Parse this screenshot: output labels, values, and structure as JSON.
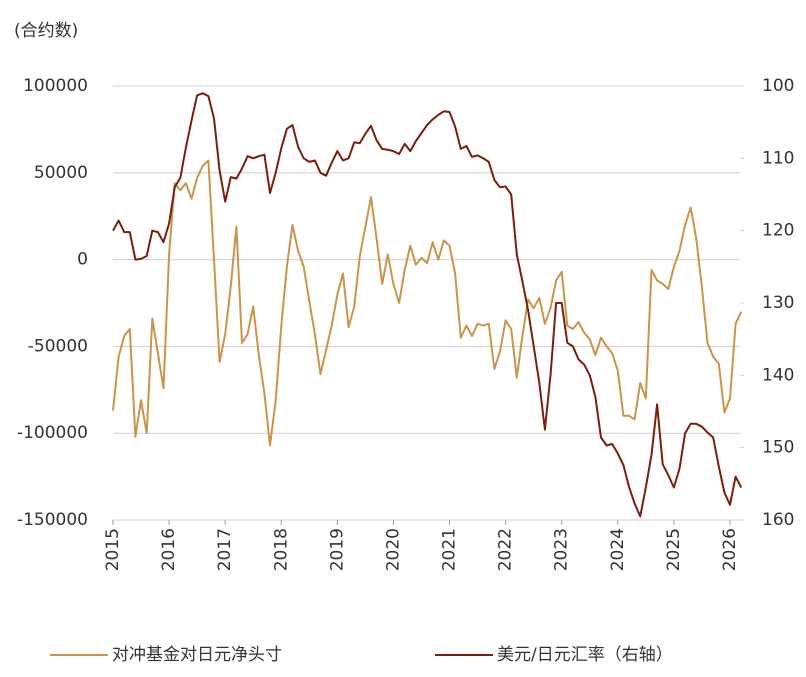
{
  "chart_data": {
    "type": "line",
    "ylabel": "(合约数)",
    "x": [
      2015,
      2015.1,
      2015.2,
      2015.3,
      2015.4,
      2015.5,
      2015.6,
      2015.7,
      2015.8,
      2015.9,
      2016,
      2016.1,
      2016.2,
      2016.3,
      2016.4,
      2016.5,
      2016.6,
      2016.7,
      2016.8,
      2016.9,
      2017,
      2017.1,
      2017.2,
      2017.3,
      2017.4,
      2017.5,
      2017.6,
      2017.7,
      2017.8,
      2017.9,
      2018,
      2018.1,
      2018.2,
      2018.3,
      2018.4,
      2018.5,
      2018.6,
      2018.7,
      2018.8,
      2018.9,
      2019,
      2019.1,
      2019.2,
      2019.3,
      2019.4,
      2019.5,
      2019.6,
      2019.7,
      2019.8,
      2019.9,
      2020,
      2020.1,
      2020.2,
      2020.3,
      2020.4,
      2020.5,
      2020.6,
      2020.7,
      2020.8,
      2020.9,
      2021,
      2021.1,
      2021.2,
      2021.3,
      2021.4,
      2021.5,
      2021.6,
      2021.7,
      2021.8,
      2021.9,
      2022,
      2022.1,
      2022.2,
      2022.3,
      2022.4,
      2022.5,
      2022.6,
      2022.7,
      2022.8,
      2022.9,
      2023,
      2023.1,
      2023.2,
      2023.3,
      2023.4,
      2023.5,
      2023.6,
      2023.7,
      2023.8,
      2023.9,
      2024,
      2024.1,
      2024.2,
      2024.3,
      2024.4,
      2024.5,
      2024.6,
      2024.7,
      2024.8,
      2024.9,
      2025,
      2025.1,
      2025.2,
      2025.3,
      2025.4,
      2025.5,
      2025.6,
      2025.7,
      2025.8,
      2025.9,
      2026,
      2026.1,
      2026.2
    ],
    "series": [
      {
        "name": "对冲基金对日元净头寸",
        "color": "#c9954c",
        "axis": "y",
        "values": [
          -87000,
          -56000,
          -44000,
          -40000,
          -102000,
          -81000,
          -100000,
          -34000,
          -54000,
          -74000,
          3000,
          44000,
          40000,
          44000,
          35000,
          47000,
          54000,
          57000,
          0,
          -59000,
          -43000,
          -15000,
          19000,
          -48000,
          -43000,
          -27000,
          -55000,
          -77000,
          -107000,
          -81000,
          -38000,
          -4000,
          20000,
          5000,
          -4000,
          -24000,
          -43000,
          -66000,
          -52000,
          -38000,
          -20000,
          -8000,
          -39000,
          -27000,
          2000,
          19000,
          36000,
          12000,
          -14000,
          3000,
          -14000,
          -25000,
          -6000,
          8000,
          -3000,
          1000,
          -2000,
          10000,
          0,
          11000,
          8000,
          -8000,
          -45000,
          -38000,
          -44000,
          -37000,
          -38000,
          -37000,
          -63000,
          -53000,
          -35000,
          -40000,
          -68000,
          -44000,
          -23000,
          -28000,
          -22000,
          -37000,
          -28000,
          -12000,
          -7000,
          -38000,
          -40000,
          -36000,
          -42000,
          -46000,
          -55000,
          -45000,
          -50000,
          -54000,
          -64000,
          -90000,
          -90000,
          -92000,
          -71000,
          -80000,
          -6000,
          -12000,
          -14000,
          -17000,
          -4000,
          5000,
          20000,
          30000,
          12000,
          -16000,
          -48000,
          -56000,
          -60000,
          -88000,
          -80000,
          -37000,
          -30000
        ]
      },
      {
        "name": "美元/日元汇率（右轴）",
        "color": "#7b1e0c",
        "axis": "y2",
        "values": [
          120,
          118.6,
          120.2,
          120.2,
          124,
          123.9,
          123.5,
          120,
          120.2,
          121.6,
          119,
          114,
          112.7,
          108.5,
          104.8,
          101.3,
          101,
          101.4,
          104.5,
          111.7,
          116,
          112.6,
          112.8,
          111.4,
          109.7,
          110,
          109.7,
          109.5,
          114.8,
          112,
          108.6,
          105.9,
          105.4,
          108.4,
          110,
          110.5,
          110.3,
          112,
          112.4,
          110.6,
          109,
          110.3,
          110,
          107.8,
          107.9,
          106.6,
          105.5,
          107.5,
          108.7,
          108.8,
          109,
          109.4,
          108,
          109,
          107.6,
          106.5,
          105.4,
          104.6,
          104,
          103.5,
          103.6,
          105.6,
          108.7,
          108.3,
          109.8,
          109.6,
          110,
          110.5,
          113,
          114,
          113.9,
          115,
          123.3,
          127,
          131,
          136,
          141,
          147.5,
          140,
          130,
          130,
          135.5,
          136,
          137.8,
          138.5,
          140,
          143,
          148.6,
          149.7,
          149.5,
          150.8,
          152.4,
          155.4,
          157.7,
          159.5,
          155.5,
          151,
          144,
          152.3,
          153.8,
          155.5,
          152.9,
          148,
          146.7,
          146.7,
          147.1,
          147.9,
          148.6,
          152.6,
          156.2,
          157.9,
          154,
          155.5
        ]
      }
    ],
    "xlim": [
      2015,
      2026.25
    ],
    "xticks": [
      2015,
      2016,
      2017,
      2018,
      2019,
      2020,
      2021,
      2022,
      2023,
      2024,
      2025,
      2026
    ],
    "ylim": [
      -150000,
      100000
    ],
    "yticks": [
      -150000,
      -100000,
      -50000,
      0,
      50000,
      100000
    ],
    "y2lim": [
      100,
      160
    ],
    "y2ticks": [
      100,
      110,
      120,
      130,
      140,
      150,
      160
    ],
    "y2_inverted": true,
    "grid": true,
    "legend": "bottom"
  }
}
